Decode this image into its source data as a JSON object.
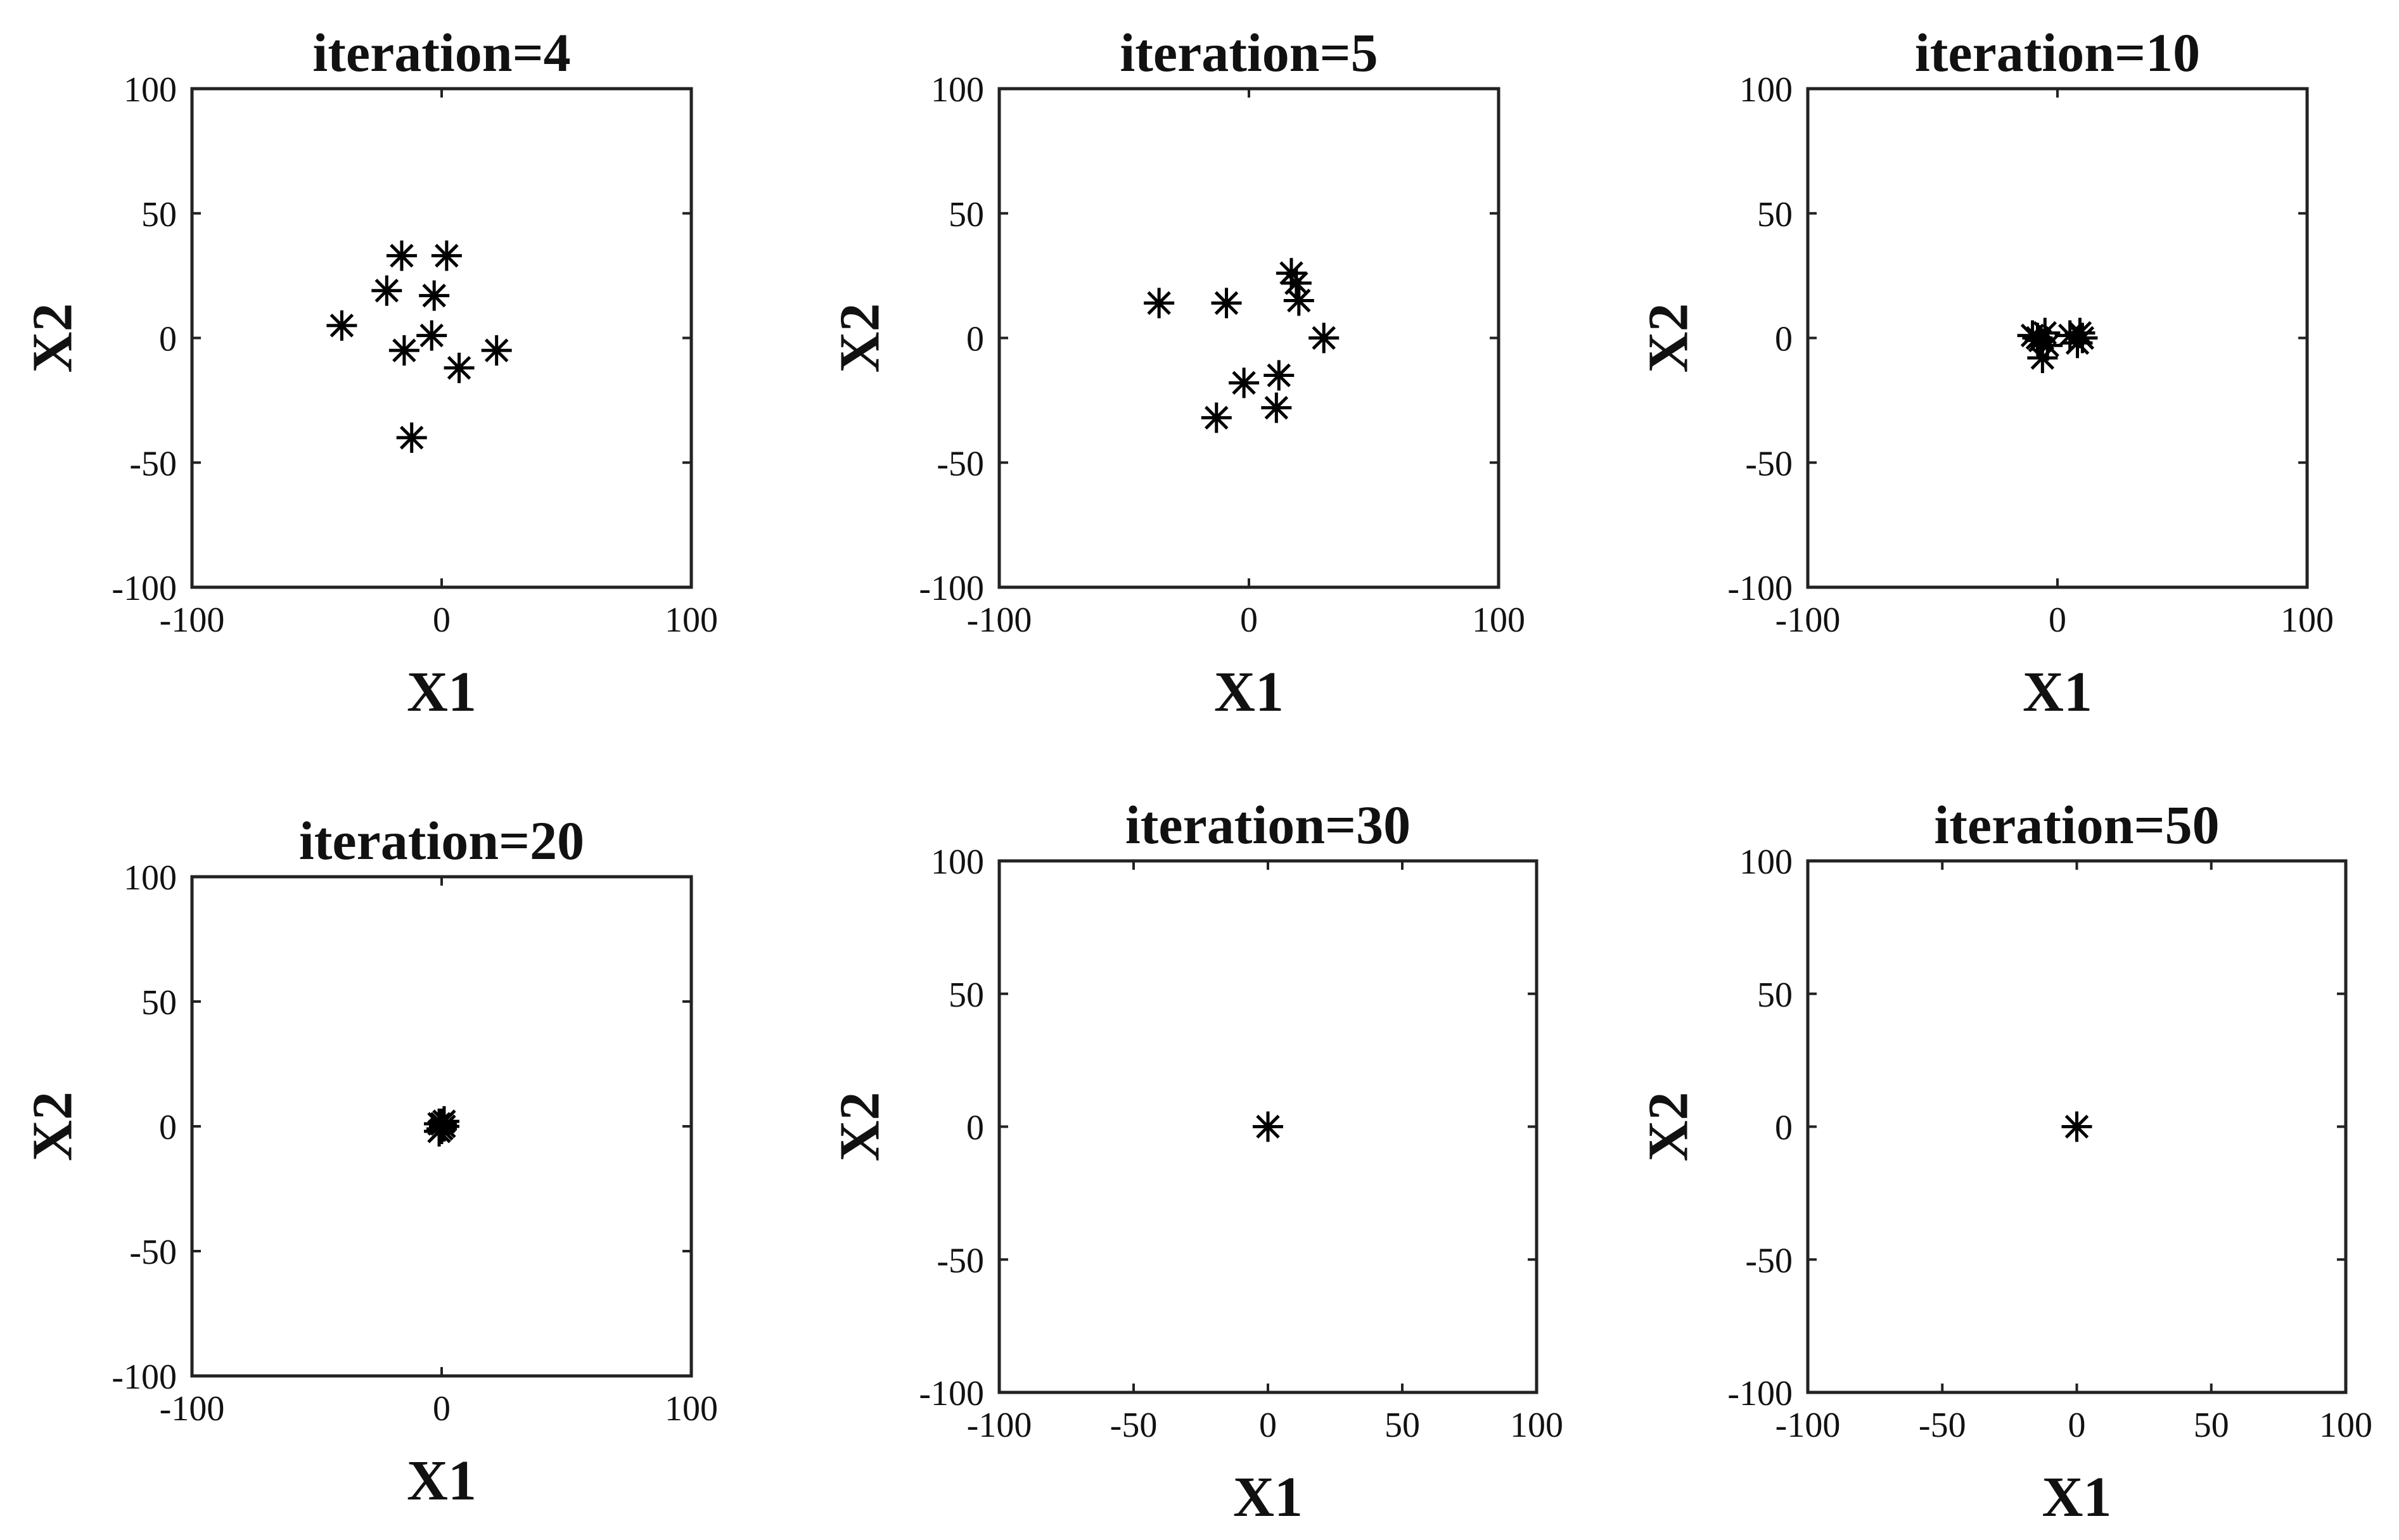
{
  "figure": {
    "background": "#ffffff",
    "marker_color": "#000000",
    "marker_symbol": "asterisk"
  },
  "chart_data": [
    {
      "type": "scatter",
      "title": "iteration=4",
      "xlabel": "X1",
      "ylabel": "X2",
      "xlim": [
        -100,
        100
      ],
      "ylim": [
        -100,
        100
      ],
      "xticks": [
        "-100",
        "0",
        "100"
      ],
      "yticks": [
        "100",
        "50",
        "0",
        "-50",
        "-100"
      ],
      "grid": false,
      "points": [
        {
          "x": -16,
          "y": 33
        },
        {
          "x": 2,
          "y": 33
        },
        {
          "x": -22,
          "y": 19
        },
        {
          "x": -3,
          "y": 17
        },
        {
          "x": -40,
          "y": 5
        },
        {
          "x": -4,
          "y": 1
        },
        {
          "x": -15,
          "y": -5
        },
        {
          "x": 7,
          "y": -12
        },
        {
          "x": 22,
          "y": -5
        },
        {
          "x": -12,
          "y": -40
        }
      ]
    },
    {
      "type": "scatter",
      "title": "iteration=5",
      "xlabel": "X1",
      "ylabel": "X2",
      "xlim": [
        -100,
        100
      ],
      "ylim": [
        -100,
        100
      ],
      "xticks": [
        "-100",
        "0",
        "100"
      ],
      "yticks": [
        "100",
        "50",
        "0",
        "-50",
        "-100"
      ],
      "grid": false,
      "points": [
        {
          "x": -36,
          "y": 14
        },
        {
          "x": -9,
          "y": 14
        },
        {
          "x": 17,
          "y": 26
        },
        {
          "x": 19,
          "y": 22
        },
        {
          "x": 20,
          "y": 15
        },
        {
          "x": 30,
          "y": 0
        },
        {
          "x": -2,
          "y": -18
        },
        {
          "x": 12,
          "y": -15
        },
        {
          "x": -13,
          "y": -32
        },
        {
          "x": 11,
          "y": -28
        }
      ]
    },
    {
      "type": "scatter",
      "title": "iteration=10",
      "xlabel": "X1",
      "ylabel": "X2",
      "xlim": [
        -100,
        100
      ],
      "ylim": [
        -100,
        100
      ],
      "xticks": [
        "-100",
        "0",
        "100"
      ],
      "yticks": [
        "100",
        "50",
        "0",
        "-50",
        "-100"
      ],
      "grid": false,
      "points": [
        {
          "x": -10,
          "y": 1
        },
        {
          "x": -7,
          "y": -1
        },
        {
          "x": -5,
          "y": 2
        },
        {
          "x": -6,
          "y": -8
        },
        {
          "x": -8,
          "y": 0
        },
        {
          "x": 5,
          "y": 1
        },
        {
          "x": 8,
          "y": -2
        },
        {
          "x": 10,
          "y": 0
        },
        {
          "x": -4,
          "y": -3
        },
        {
          "x": 9,
          "y": 2
        }
      ]
    },
    {
      "type": "scatter",
      "title": "iteration=20",
      "xlabel": "X1",
      "ylabel": "X2",
      "xlim": [
        -100,
        100
      ],
      "ylim": [
        -100,
        100
      ],
      "xticks": [
        "-100",
        "0",
        "100"
      ],
      "yticks": [
        "100",
        "50",
        "0",
        "-50",
        "-100"
      ],
      "grid": false,
      "points": [
        {
          "x": -1,
          "y": 1
        },
        {
          "x": 0,
          "y": -1
        },
        {
          "x": 1,
          "y": 2
        },
        {
          "x": -1,
          "y": -2
        },
        {
          "x": 1,
          "y": 0
        },
        {
          "x": 0,
          "y": 1
        }
      ]
    },
    {
      "type": "scatter",
      "title": "iteration=30",
      "xlabel": "X1",
      "ylabel": "X2",
      "xlim": [
        -100,
        100
      ],
      "ylim": [
        -100,
        100
      ],
      "xticks": [
        "-100",
        "-50",
        "0",
        "50",
        "100"
      ],
      "yticks": [
        "100",
        "50",
        "0",
        "-50",
        "-100"
      ],
      "grid": false,
      "points": [
        {
          "x": 0,
          "y": 0
        }
      ]
    },
    {
      "type": "scatter",
      "title": "iteration=50",
      "xlabel": "X1",
      "ylabel": "X2",
      "xlim": [
        -100,
        100
      ],
      "ylim": [
        -100,
        100
      ],
      "xticks": [
        "-100",
        "-50",
        "0",
        "50",
        "100"
      ],
      "yticks": [
        "100",
        "50",
        "0",
        "-50",
        "-100"
      ],
      "grid": false,
      "points": [
        {
          "x": 0,
          "y": 0
        }
      ]
    }
  ]
}
